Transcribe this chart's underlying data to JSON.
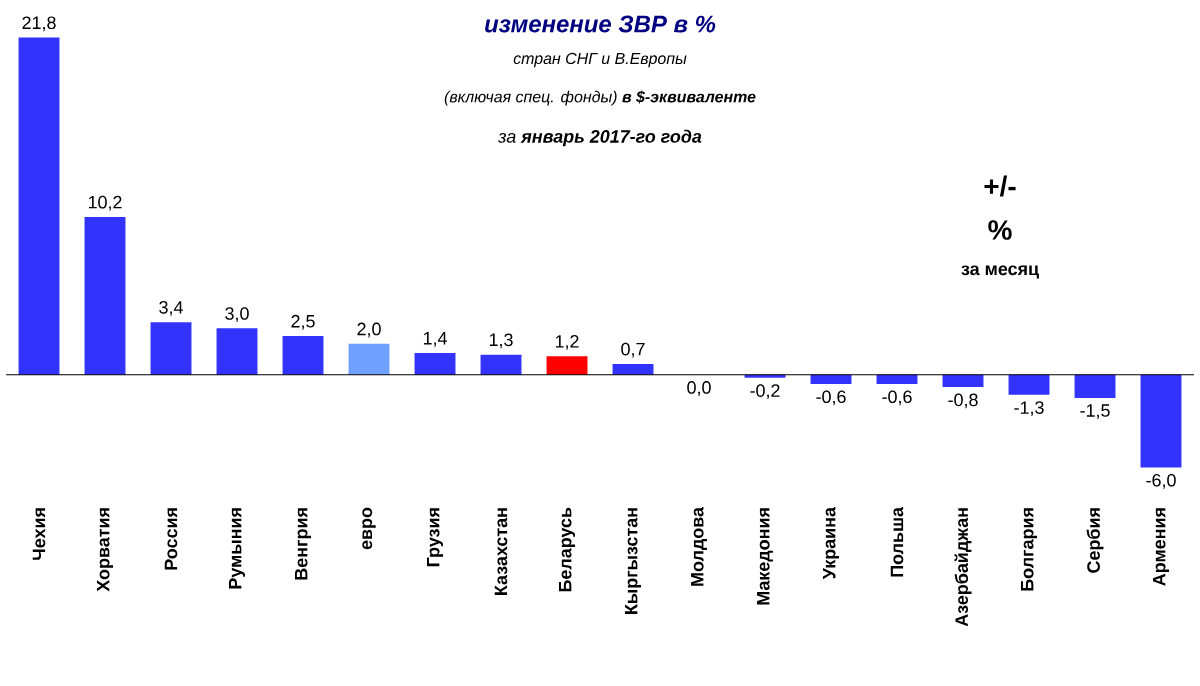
{
  "chart_data": {
    "type": "bar",
    "title": "изменение ЗВР в %",
    "subtitle": "стран СНГ и В.Европы",
    "annotations": [
      "(включая спец. фонды) **в $-эквиваленте**",
      "за **январь 2017-го года**",
      "+/-",
      "%",
      "за месяц"
    ],
    "categories": [
      "Чехия",
      "Хорватия",
      "Россия",
      "Румыния",
      "Венгрия",
      "евро",
      "Грузия",
      "Казахстан",
      "Беларусь",
      "Кыргызстан",
      "Молдова",
      "Македония",
      "Украина",
      "Польша",
      "Азербайджан",
      "Болгария",
      "Сербия",
      "Армения"
    ],
    "values": [
      21.8,
      10.2,
      3.4,
      3.0,
      2.5,
      2.0,
      1.4,
      1.3,
      1.2,
      0.7,
      0.0,
      -0.2,
      -0.6,
      -0.6,
      -0.8,
      -1.3,
      -1.5,
      -6.0
    ],
    "value_labels": [
      "21,8",
      "10,2",
      "3,4",
      "3,0",
      "2,5",
      "2,0",
      "1,4",
      "1,3",
      "1,2",
      "0,7",
      "0,0",
      "-0,2",
      "-0,6",
      "-0,6",
      "-0,8",
      "-1,3",
      "-1,5",
      "-6,0"
    ],
    "colors": [
      "#3333ff",
      "#3333ff",
      "#3333ff",
      "#3333ff",
      "#3333ff",
      "#6f9fff",
      "#3333ff",
      "#3333ff",
      "#ff0000",
      "#3333ff",
      "#3333ff",
      "#3333ff",
      "#3333ff",
      "#3333ff",
      "#3333ff",
      "#3333ff",
      "#3333ff",
      "#3333ff"
    ],
    "legend": false
  }
}
